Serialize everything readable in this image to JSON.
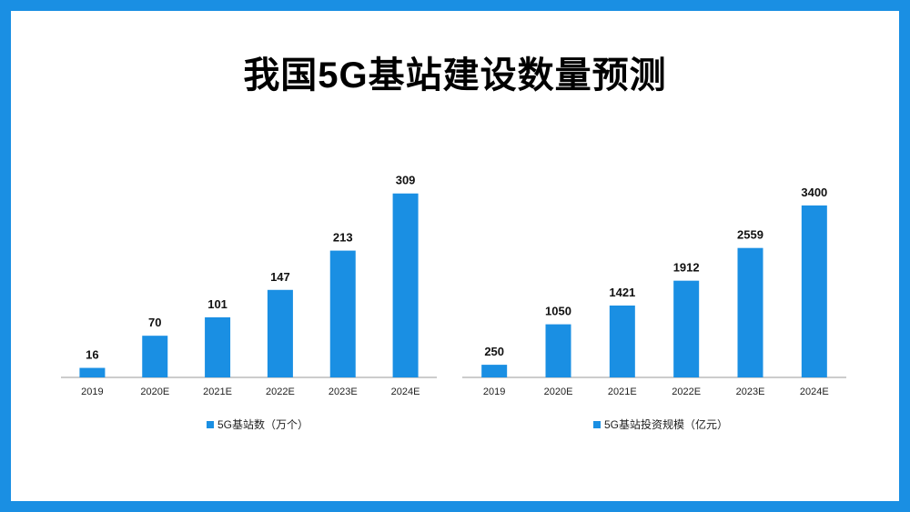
{
  "page": {
    "title": "我国5G基站建设数量预测"
  },
  "colors": {
    "frame": "#1a8fe3",
    "bar": "#1a8fe3",
    "axis": "#999999"
  },
  "chart_data": [
    {
      "type": "bar",
      "categories": [
        "2019",
        "2020E",
        "2021E",
        "2022E",
        "2023E",
        "2024E"
      ],
      "series": [
        {
          "name": "5G基站数（万个）",
          "values": [
            16,
            70,
            101,
            147,
            213,
            309
          ]
        }
      ],
      "data_labels": [
        "16",
        "70",
        "101",
        "147",
        "213",
        "309"
      ],
      "ylim": [
        0,
        330
      ],
      "grid": false,
      "legend": "bottom"
    },
    {
      "type": "bar",
      "categories": [
        "2019",
        "2020E",
        "2021E",
        "2022E",
        "2023E",
        "2024E"
      ],
      "series": [
        {
          "name": "5G基站投资规模（亿元）",
          "values": [
            250,
            1050,
            1421,
            1912,
            2559,
            3400
          ]
        }
      ],
      "data_labels": [
        "250",
        "1050",
        "1421",
        "1912",
        "2559",
        "3400"
      ],
      "ylim": [
        0,
        3650
      ],
      "grid": false,
      "legend": "bottom"
    }
  ]
}
